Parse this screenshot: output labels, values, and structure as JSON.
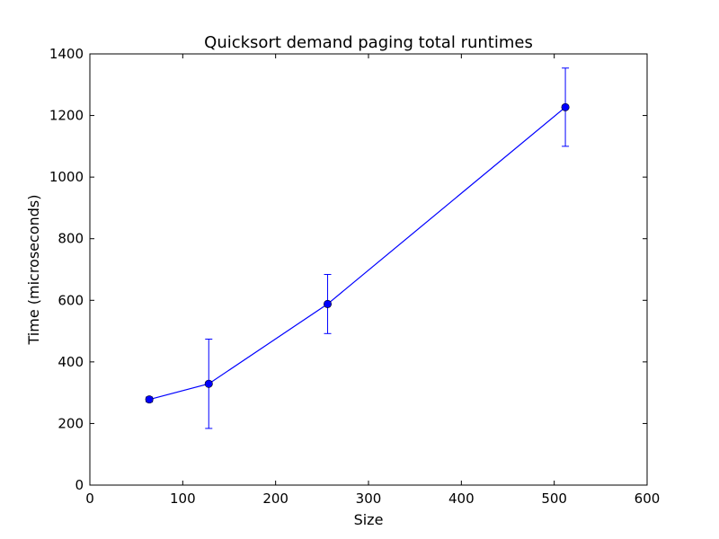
{
  "chart_data": {
    "type": "line",
    "title": "Quicksort demand paging total runtimes",
    "xlabel": "Size",
    "ylabel": "Time (microseconds)",
    "xlim": [
      0,
      600
    ],
    "ylim": [
      0,
      1400
    ],
    "xticks": [
      "0",
      "100",
      "200",
      "300",
      "400",
      "500",
      "600"
    ],
    "yticks": [
      "0",
      "200",
      "400",
      "600",
      "800",
      "1000",
      "1200",
      "1400"
    ],
    "grid": false,
    "series": [
      {
        "color": "#0000ff",
        "points": [
          {
            "x": 64,
            "y": 278,
            "err": 8
          },
          {
            "x": 128,
            "y": 329,
            "err": 145
          },
          {
            "x": 256,
            "y": 588,
            "err": 96
          },
          {
            "x": 512,
            "y": 1227,
            "err": 127
          }
        ]
      }
    ]
  }
}
